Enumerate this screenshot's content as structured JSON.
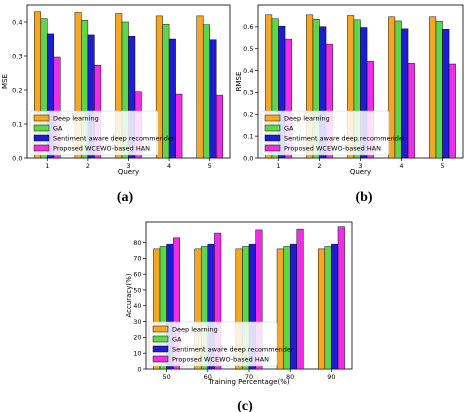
{
  "colors": {
    "deep_learning": "#f5a623",
    "ga": "#5cd64a",
    "sentiment": "#1d1dd6",
    "proposed": "#ee2ee6"
  },
  "chart_data": [
    {
      "panel": "(a)",
      "type": "bar",
      "xlabel": "Query",
      "ylabel": "MSE",
      "categories": [
        "1",
        "2",
        "3",
        "4",
        "5"
      ],
      "ylim": [
        0,
        0.45
      ],
      "yticks": [
        "0.0",
        "0.1",
        "0.2",
        "0.3",
        "0.4"
      ],
      "legend_position": "lower-left",
      "series": [
        {
          "name": "Deep learning",
          "values": [
            0.43,
            0.428,
            0.425,
            0.418,
            0.418
          ]
        },
        {
          "name": "GA",
          "values": [
            0.41,
            0.405,
            0.4,
            0.393,
            0.392
          ]
        },
        {
          "name": "Sentiment aware deep recommender",
          "values": [
            0.365,
            0.362,
            0.358,
            0.35,
            0.348
          ]
        },
        {
          "name": "Proposed WCEWO-based HAN",
          "values": [
            0.297,
            0.273,
            0.195,
            0.188,
            0.185
          ]
        }
      ]
    },
    {
      "panel": "(b)",
      "type": "bar",
      "xlabel": "Query",
      "ylabel": "RMSE",
      "categories": [
        "1",
        "2",
        "3",
        "4",
        "5"
      ],
      "ylim": [
        0,
        0.7
      ],
      "yticks": [
        "0.0",
        "0.1",
        "0.2",
        "0.3",
        "0.4",
        "0.5",
        "0.6"
      ],
      "legend_position": "lower-left",
      "series": [
        {
          "name": "Deep learning",
          "values": [
            0.655,
            0.655,
            0.652,
            0.646,
            0.646
          ]
        },
        {
          "name": "GA",
          "values": [
            0.637,
            0.635,
            0.632,
            0.627,
            0.626
          ]
        },
        {
          "name": "Sentiment aware deep recommender",
          "values": [
            0.603,
            0.601,
            0.597,
            0.591,
            0.589
          ]
        },
        {
          "name": "Proposed WCEWO-based HAN",
          "values": [
            0.544,
            0.521,
            0.442,
            0.433,
            0.43
          ]
        }
      ]
    },
    {
      "panel": "(c)",
      "type": "bar",
      "xlabel": "Training Percentage(%)",
      "ylabel": "Accuracy(%)",
      "categories": [
        "50",
        "60",
        "70",
        "80",
        "90"
      ],
      "ylim": [
        0,
        93
      ],
      "yticks": [
        "0",
        "10",
        "20",
        "30",
        "40",
        "50",
        "60",
        "70",
        "80"
      ],
      "legend_position": "lower-left",
      "series": [
        {
          "name": "Deep learning",
          "values": [
            76,
            76,
            76,
            76,
            76
          ]
        },
        {
          "name": "GA",
          "values": [
            77.5,
            77.5,
            77.5,
            77.5,
            77.5
          ]
        },
        {
          "name": "Sentiment aware deep recommender",
          "values": [
            79,
            79,
            79,
            79,
            79
          ]
        },
        {
          "name": "Proposed WCEWO-based HAN",
          "values": [
            83,
            86,
            88,
            88.5,
            90
          ]
        }
      ]
    }
  ]
}
